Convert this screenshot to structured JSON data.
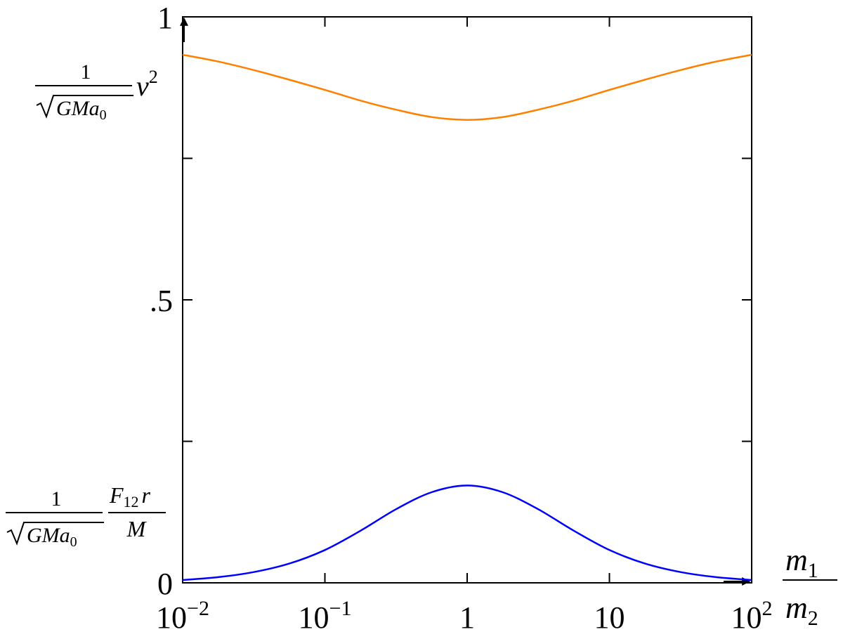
{
  "chart_data": {
    "type": "line",
    "x_scale": "log",
    "xlim": [
      0.01,
      100
    ],
    "ylim": [
      0,
      1
    ],
    "x_ticks": [
      {
        "value": 0.01,
        "base": "10",
        "exp": "−2"
      },
      {
        "value": 0.1,
        "base": "10",
        "exp": "−1"
      },
      {
        "value": 1,
        "base": "1",
        "exp": ""
      },
      {
        "value": 10,
        "base": "10",
        "exp": ""
      },
      {
        "value": 100,
        "base": "10",
        "exp": "2"
      }
    ],
    "y_ticks": [
      {
        "value": 0,
        "label": "0"
      },
      {
        "value": 0.25,
        "label": ""
      },
      {
        "value": 0.5,
        "label": ".5"
      },
      {
        "value": 0.75,
        "label": ""
      },
      {
        "value": 1,
        "label": "1"
      }
    ],
    "xlabel": {
      "num_base": "m",
      "num_sub": "1",
      "den_base": "m",
      "den_sub": "2"
    },
    "series": [
      {
        "color": "#ff8000",
        "label": {
          "frac_num": "1",
          "rad": "GMa",
          "rad_sub": "0",
          "tail": "v",
          "tail_sup": "2"
        },
        "x": [
          0.01,
          0.0178,
          0.0316,
          0.0562,
          0.1,
          0.178,
          0.316,
          0.562,
          1,
          1.78,
          3.16,
          5.62,
          10,
          17.8,
          31.6,
          56.2,
          100
        ],
        "y": [
          0.933,
          0.921,
          0.906,
          0.889,
          0.871,
          0.852,
          0.836,
          0.823,
          0.818,
          0.823,
          0.836,
          0.852,
          0.871,
          0.889,
          0.906,
          0.921,
          0.933
        ]
      },
      {
        "color": "#0000ff",
        "label": {
          "frac_num": "1",
          "rad": "GMa",
          "rad_sub": "0",
          "f_base": "F",
          "f_sub": "12",
          "f_tail": "r",
          "den": "M"
        },
        "x": [
          0.01,
          0.0178,
          0.0316,
          0.0562,
          0.1,
          0.178,
          0.316,
          0.562,
          1,
          1.78,
          3.16,
          5.62,
          10,
          17.8,
          31.6,
          56.2,
          100
        ],
        "y": [
          0.005,
          0.01,
          0.019,
          0.034,
          0.058,
          0.092,
          0.13,
          0.16,
          0.172,
          0.16,
          0.13,
          0.092,
          0.058,
          0.034,
          0.019,
          0.01,
          0.005
        ]
      }
    ]
  }
}
